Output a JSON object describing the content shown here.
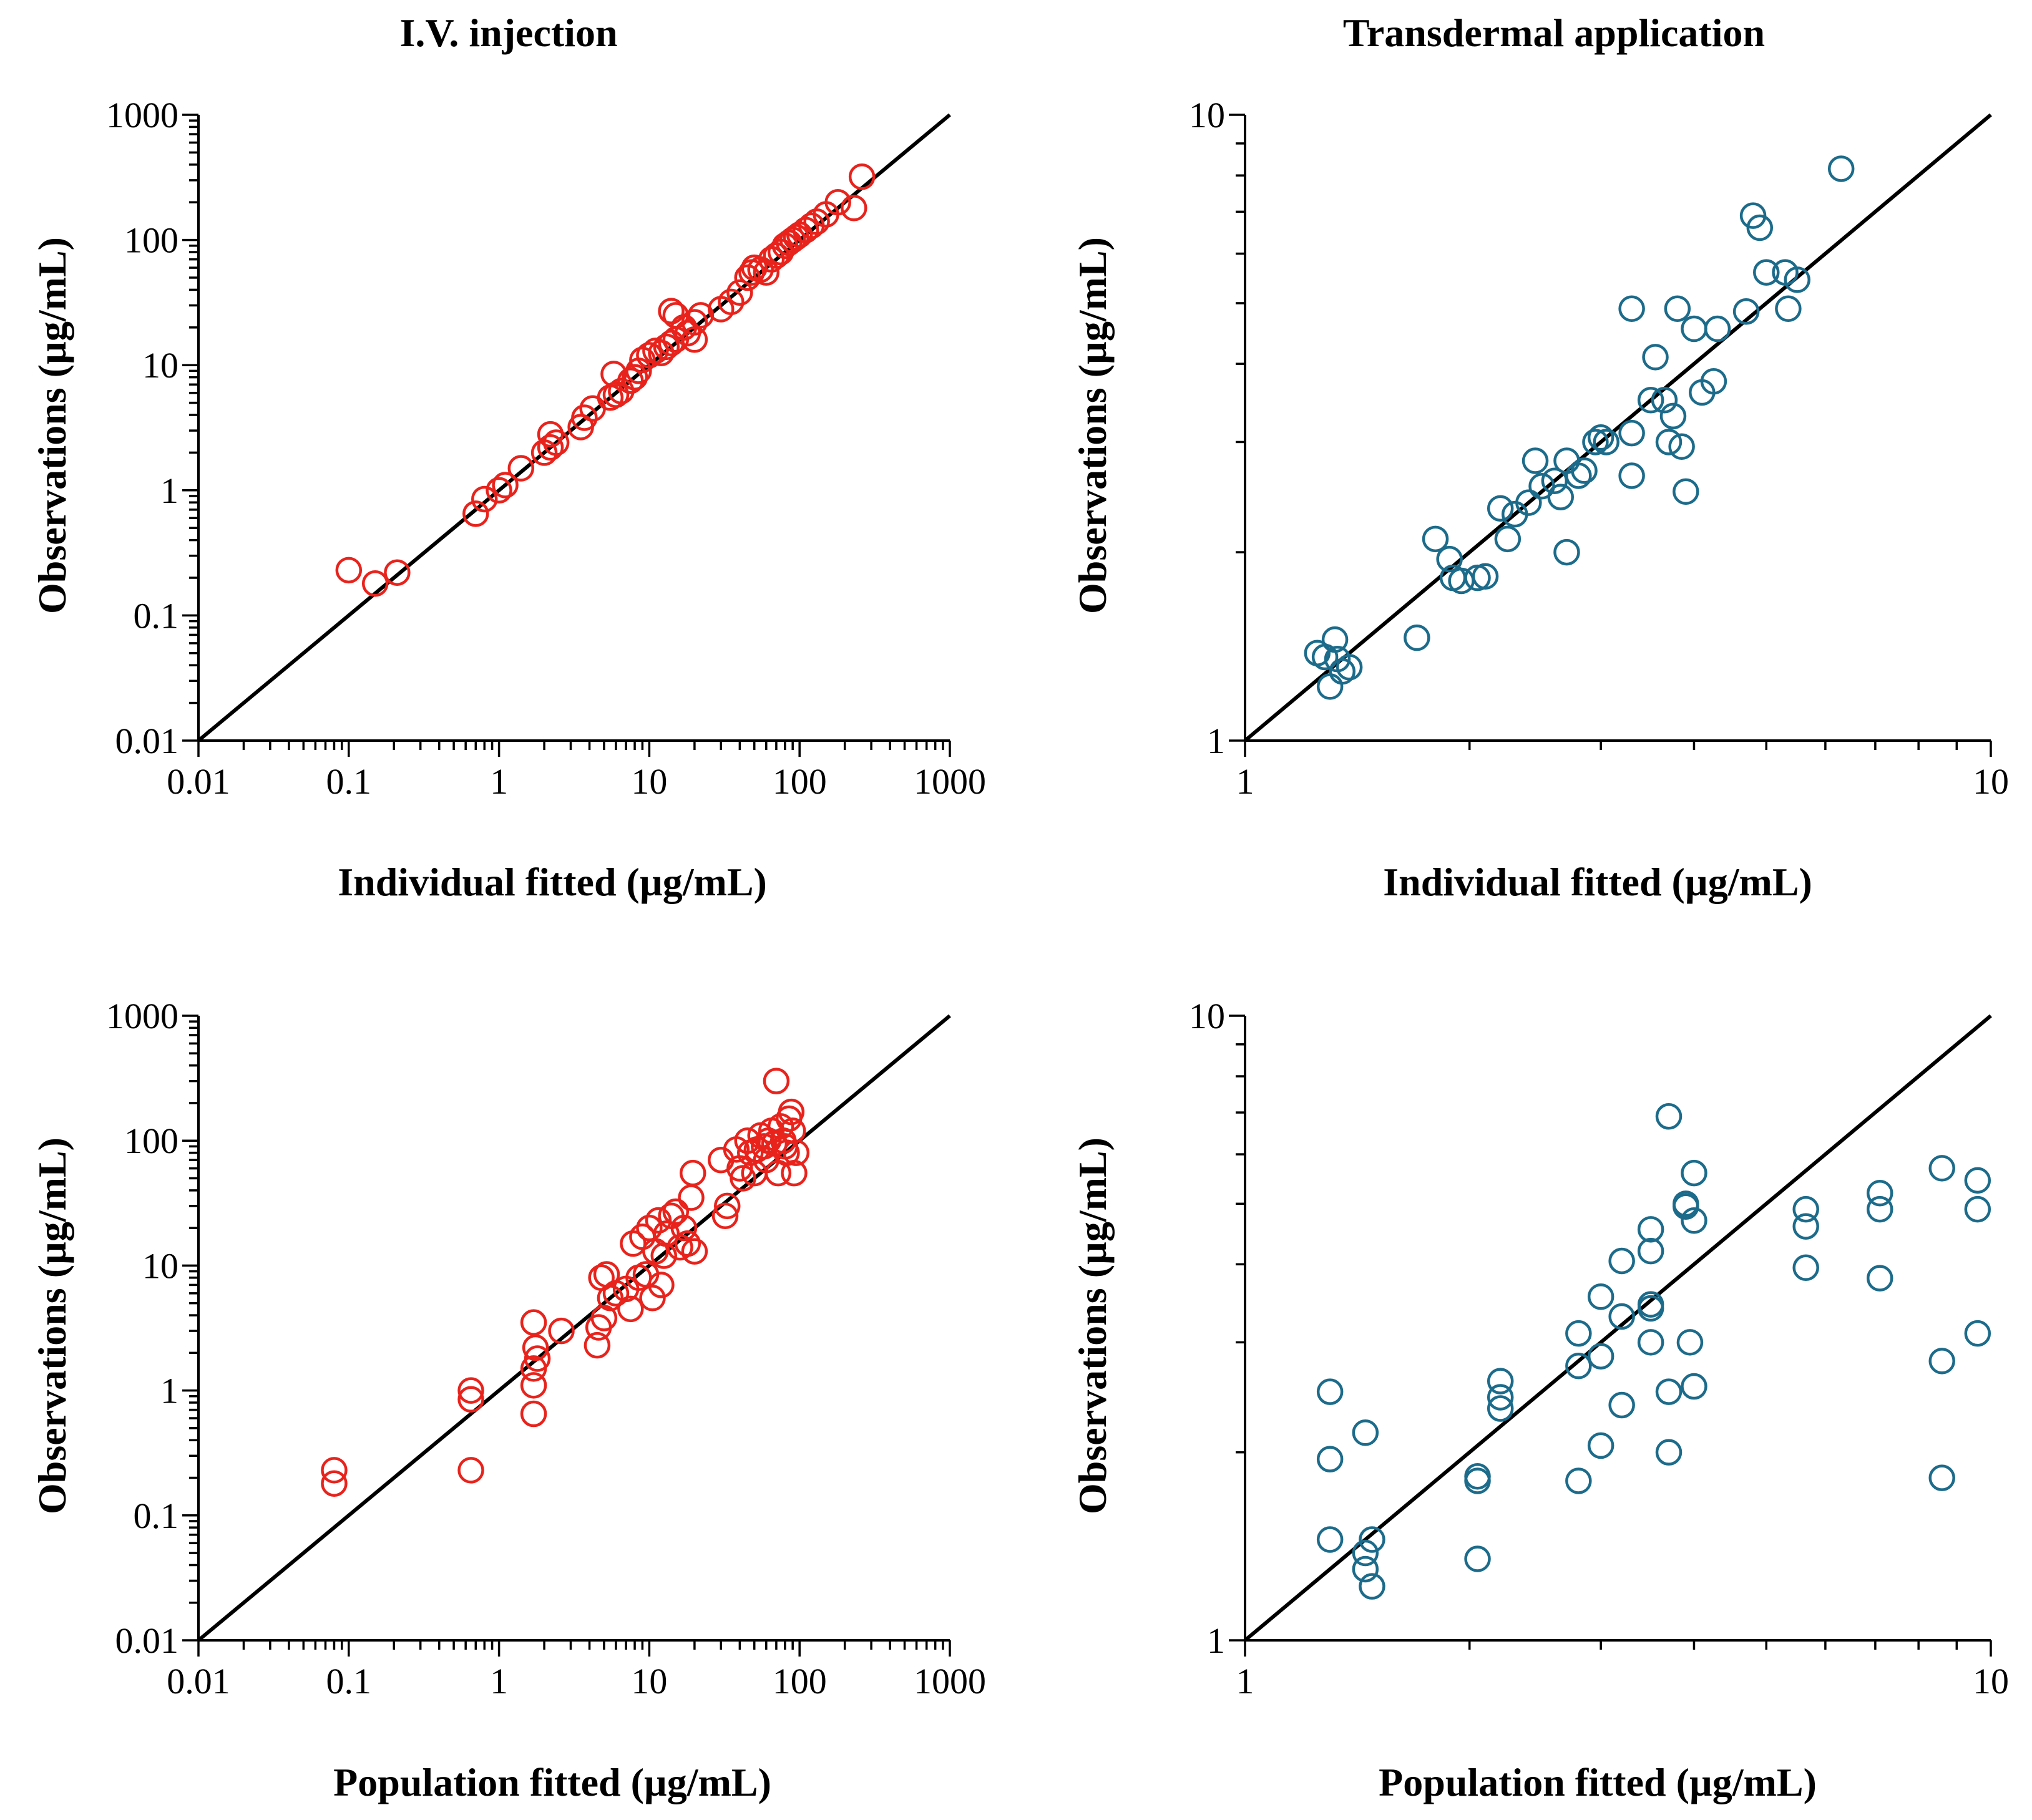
{
  "figure": {
    "column_titles": [
      "I.V. injection",
      "Transdermal application"
    ]
  },
  "chart_data": [
    {
      "id": "iv-individual",
      "type": "scatter",
      "xlabel": "Individual fitted (µg/mL)",
      "ylabel": "Observations (µg/mL)",
      "xscale": "log",
      "yscale": "log",
      "xlim": [
        0.01,
        1000
      ],
      "ylim": [
        0.01,
        1000
      ],
      "x_tick_labels": [
        "0.01",
        "0.1",
        "1",
        "10",
        "100",
        "1000"
      ],
      "y_tick_labels": [
        "0.01",
        "0.1",
        "1",
        "10",
        "100",
        "1000"
      ],
      "identity_line": true,
      "marker_color": "#e8231c",
      "points": [
        [
          0.1,
          0.23
        ],
        [
          0.15,
          0.18
        ],
        [
          0.21,
          0.22
        ],
        [
          0.7,
          0.65
        ],
        [
          0.8,
          0.85
        ],
        [
          1.0,
          1.0
        ],
        [
          1.1,
          1.1
        ],
        [
          1.4,
          1.5
        ],
        [
          2.0,
          2.0
        ],
        [
          2.2,
          2.2
        ],
        [
          2.4,
          2.4
        ],
        [
          2.2,
          2.8
        ],
        [
          3.5,
          3.2
        ],
        [
          3.7,
          3.8
        ],
        [
          4.2,
          4.5
        ],
        [
          5.5,
          5.5
        ],
        [
          6.0,
          5.8
        ],
        [
          6.5,
          6.2
        ],
        [
          5.8,
          8.5
        ],
        [
          7.5,
          7.5
        ],
        [
          8.0,
          8.0
        ],
        [
          8.5,
          9.0
        ],
        [
          9.0,
          11.0
        ],
        [
          10.0,
          12.0
        ],
        [
          11.0,
          13.0
        ],
        [
          12.0,
          12.5
        ],
        [
          13.0,
          14.0
        ],
        [
          14.0,
          15.0
        ],
        [
          15.0,
          16.0
        ],
        [
          14.0,
          27.0
        ],
        [
          15.0,
          25.0
        ],
        [
          17.0,
          20.0
        ],
        [
          18.0,
          18.0
        ],
        [
          20.0,
          22.0
        ],
        [
          22.0,
          25.0
        ],
        [
          20.0,
          16.0
        ],
        [
          30.0,
          28.0
        ],
        [
          35.0,
          32.0
        ],
        [
          40.0,
          38.0
        ],
        [
          45.0,
          50.0
        ],
        [
          48.0,
          55.0
        ],
        [
          50.0,
          60.0
        ],
        [
          55.0,
          58.0
        ],
        [
          60.0,
          55.0
        ],
        [
          65.0,
          70.0
        ],
        [
          70.0,
          75.0
        ],
        [
          75.0,
          80.0
        ],
        [
          80.0,
          90.0
        ],
        [
          85.0,
          95.0
        ],
        [
          90.0,
          100.0
        ],
        [
          95.0,
          105.0
        ],
        [
          100.0,
          110.0
        ],
        [
          110.0,
          120.0
        ],
        [
          120.0,
          130.0
        ],
        [
          130.0,
          140.0
        ],
        [
          150.0,
          160.0
        ],
        [
          180.0,
          200.0
        ],
        [
          230.0,
          180.0
        ],
        [
          260.0,
          320.0
        ]
      ]
    },
    {
      "id": "td-individual",
      "type": "scatter",
      "xlabel": "Individual fitted (µg/mL)",
      "ylabel": "Observations (µg/mL)",
      "xscale": "log",
      "yscale": "log",
      "xlim": [
        1,
        10
      ],
      "ylim": [
        1,
        10
      ],
      "x_tick_labels": [
        "1",
        "10"
      ],
      "y_tick_labels": [
        "1",
        "10"
      ],
      "identity_line": true,
      "marker_color": "#1c6b8a",
      "points": [
        [
          1.25,
          1.38
        ],
        [
          1.28,
          1.36
        ],
        [
          1.32,
          1.45
        ],
        [
          1.33,
          1.35
        ],
        [
          1.35,
          1.29
        ],
        [
          1.38,
          1.31
        ],
        [
          1.3,
          1.22
        ],
        [
          1.7,
          1.46
        ],
        [
          1.8,
          2.1
        ],
        [
          1.88,
          1.95
        ],
        [
          1.9,
          1.82
        ],
        [
          1.95,
          1.8
        ],
        [
          2.1,
          1.83
        ],
        [
          2.05,
          1.82
        ],
        [
          2.2,
          2.35
        ],
        [
          2.25,
          2.1
        ],
        [
          2.3,
          2.3
        ],
        [
          2.4,
          2.4
        ],
        [
          2.45,
          2.8
        ],
        [
          2.5,
          2.55
        ],
        [
          2.6,
          2.6
        ],
        [
          2.65,
          2.45
        ],
        [
          2.7,
          2.8
        ],
        [
          2.7,
          2.0
        ],
        [
          2.8,
          2.65
        ],
        [
          2.85,
          2.7
        ],
        [
          2.95,
          3.0
        ],
        [
          3.0,
          3.05
        ],
        [
          3.05,
          3.0
        ],
        [
          3.3,
          2.65
        ],
        [
          3.3,
          3.1
        ],
        [
          3.3,
          4.9
        ],
        [
          3.5,
          3.5
        ],
        [
          3.55,
          4.1
        ],
        [
          3.65,
          3.5
        ],
        [
          3.7,
          3.0
        ],
        [
          3.75,
          3.3
        ],
        [
          3.8,
          4.9
        ],
        [
          3.85,
          2.95
        ],
        [
          3.9,
          2.5
        ],
        [
          4.0,
          4.55
        ],
        [
          4.1,
          3.6
        ],
        [
          4.25,
          3.75
        ],
        [
          4.3,
          4.55
        ],
        [
          4.7,
          4.85
        ],
        [
          4.8,
          6.9
        ],
        [
          4.9,
          6.6
        ],
        [
          5.0,
          5.6
        ],
        [
          5.3,
          5.6
        ],
        [
          5.35,
          4.9
        ],
        [
          5.5,
          5.45
        ],
        [
          6.3,
          8.2
        ]
      ]
    },
    {
      "id": "iv-population",
      "type": "scatter",
      "xlabel": "Population fitted (µg/mL)",
      "ylabel": "Observations (µg/mL)",
      "xscale": "log",
      "yscale": "log",
      "xlim": [
        0.01,
        1000
      ],
      "ylim": [
        0.01,
        1000
      ],
      "x_tick_labels": [
        "0.01",
        "0.1",
        "1",
        "10",
        "100",
        "1000"
      ],
      "y_tick_labels": [
        "0.01",
        "0.1",
        "1",
        "10",
        "100",
        "1000"
      ],
      "identity_line": true,
      "marker_color": "#e8231c",
      "points": [
        [
          0.08,
          0.23
        ],
        [
          0.08,
          0.18
        ],
        [
          0.65,
          1.0
        ],
        [
          0.65,
          0.85
        ],
        [
          0.65,
          0.23
        ],
        [
          1.7,
          3.5
        ],
        [
          1.75,
          2.2
        ],
        [
          1.8,
          1.8
        ],
        [
          1.7,
          1.5
        ],
        [
          1.7,
          1.1
        ],
        [
          1.7,
          0.65
        ],
        [
          2.6,
          3.0
        ],
        [
          4.5,
          2.3
        ],
        [
          4.6,
          3.2
        ],
        [
          4.8,
          8.0
        ],
        [
          5.0,
          3.8
        ],
        [
          5.2,
          8.5
        ],
        [
          5.5,
          5.5
        ],
        [
          6.0,
          6.0
        ],
        [
          7.0,
          6.5
        ],
        [
          7.5,
          4.5
        ],
        [
          7.8,
          15.0
        ],
        [
          8.5,
          8.0
        ],
        [
          9.0,
          17.0
        ],
        [
          9.5,
          8.5
        ],
        [
          10.0,
          20.0
        ],
        [
          10.5,
          5.5
        ],
        [
          11.0,
          13.0
        ],
        [
          11.5,
          23.0
        ],
        [
          12.0,
          7.0
        ],
        [
          12.5,
          12.0
        ],
        [
          13.0,
          18.0
        ],
        [
          14.0,
          25.0
        ],
        [
          15.0,
          27.0
        ],
        [
          16.0,
          14.0
        ],
        [
          17.0,
          20.0
        ],
        [
          18.0,
          15.0
        ],
        [
          19.0,
          35.0
        ],
        [
          19.5,
          55.0
        ],
        [
          20.0,
          13.0
        ],
        [
          30.0,
          70.0
        ],
        [
          32.0,
          25.0
        ],
        [
          33.0,
          30.0
        ],
        [
          38.0,
          85.0
        ],
        [
          40.0,
          60.0
        ],
        [
          42.0,
          50.0
        ],
        [
          45.0,
          100.0
        ],
        [
          47.0,
          80.0
        ],
        [
          50.0,
          55.0
        ],
        [
          52.0,
          85.0
        ],
        [
          55.0,
          110.0
        ],
        [
          58.0,
          90.0
        ],
        [
          60.0,
          70.0
        ],
        [
          62.0,
          100.0
        ],
        [
          65.0,
          120.0
        ],
        [
          68.0,
          95.0
        ],
        [
          70.0,
          300.0
        ],
        [
          72.0,
          55.0
        ],
        [
          75.0,
          130.0
        ],
        [
          78.0,
          100.0
        ],
        [
          80.0,
          90.0
        ],
        [
          82.0,
          80.0
        ],
        [
          85.0,
          150.0
        ],
        [
          88.0,
          170.0
        ],
        [
          90.0,
          120.0
        ],
        [
          92.0,
          55.0
        ],
        [
          95.0,
          80.0
        ]
      ]
    },
    {
      "id": "td-population",
      "type": "scatter",
      "xlabel": "Population fitted (µg/mL)",
      "ylabel": "Observations (µg/mL)",
      "xscale": "log",
      "yscale": "log",
      "xlim": [
        1,
        10
      ],
      "ylim": [
        1,
        10
      ],
      "x_tick_labels": [
        "1",
        "10"
      ],
      "y_tick_labels": [
        "1",
        "10"
      ],
      "identity_line": true,
      "marker_color": "#1c6b8a",
      "points": [
        [
          1.3,
          2.5
        ],
        [
          1.3,
          1.95
        ],
        [
          1.3,
          1.45
        ],
        [
          1.45,
          2.15
        ],
        [
          1.45,
          1.38
        ],
        [
          1.45,
          1.3
        ],
        [
          1.48,
          1.45
        ],
        [
          1.48,
          1.22
        ],
        [
          2.05,
          1.83
        ],
        [
          2.05,
          1.8
        ],
        [
          2.05,
          1.35
        ],
        [
          2.2,
          2.6
        ],
        [
          2.2,
          2.45
        ],
        [
          2.2,
          2.35
        ],
        [
          2.8,
          3.1
        ],
        [
          2.8,
          2.75
        ],
        [
          2.8,
          1.8
        ],
        [
          3.0,
          3.55
        ],
        [
          3.0,
          2.85
        ],
        [
          3.0,
          2.05
        ],
        [
          3.2,
          4.05
        ],
        [
          3.2,
          3.3
        ],
        [
          3.2,
          2.38
        ],
        [
          3.5,
          4.55
        ],
        [
          3.5,
          4.2
        ],
        [
          3.5,
          3.45
        ],
        [
          3.5,
          3.4
        ],
        [
          3.5,
          3.0
        ],
        [
          3.7,
          6.9
        ],
        [
          3.7,
          2.5
        ],
        [
          3.7,
          2.0
        ],
        [
          3.9,
          5.0
        ],
        [
          3.9,
          4.95
        ],
        [
          3.95,
          3.0
        ],
        [
          4.0,
          5.6
        ],
        [
          4.0,
          4.7
        ],
        [
          4.0,
          2.55
        ],
        [
          5.65,
          4.9
        ],
        [
          5.65,
          4.6
        ],
        [
          5.65,
          3.95
        ],
        [
          7.1,
          5.2
        ],
        [
          7.1,
          4.9
        ],
        [
          7.1,
          3.8
        ],
        [
          8.6,
          5.7
        ],
        [
          8.6,
          2.8
        ],
        [
          8.6,
          1.82
        ],
        [
          9.6,
          5.45
        ],
        [
          9.6,
          4.9
        ],
        [
          9.6,
          3.1
        ]
      ]
    }
  ]
}
